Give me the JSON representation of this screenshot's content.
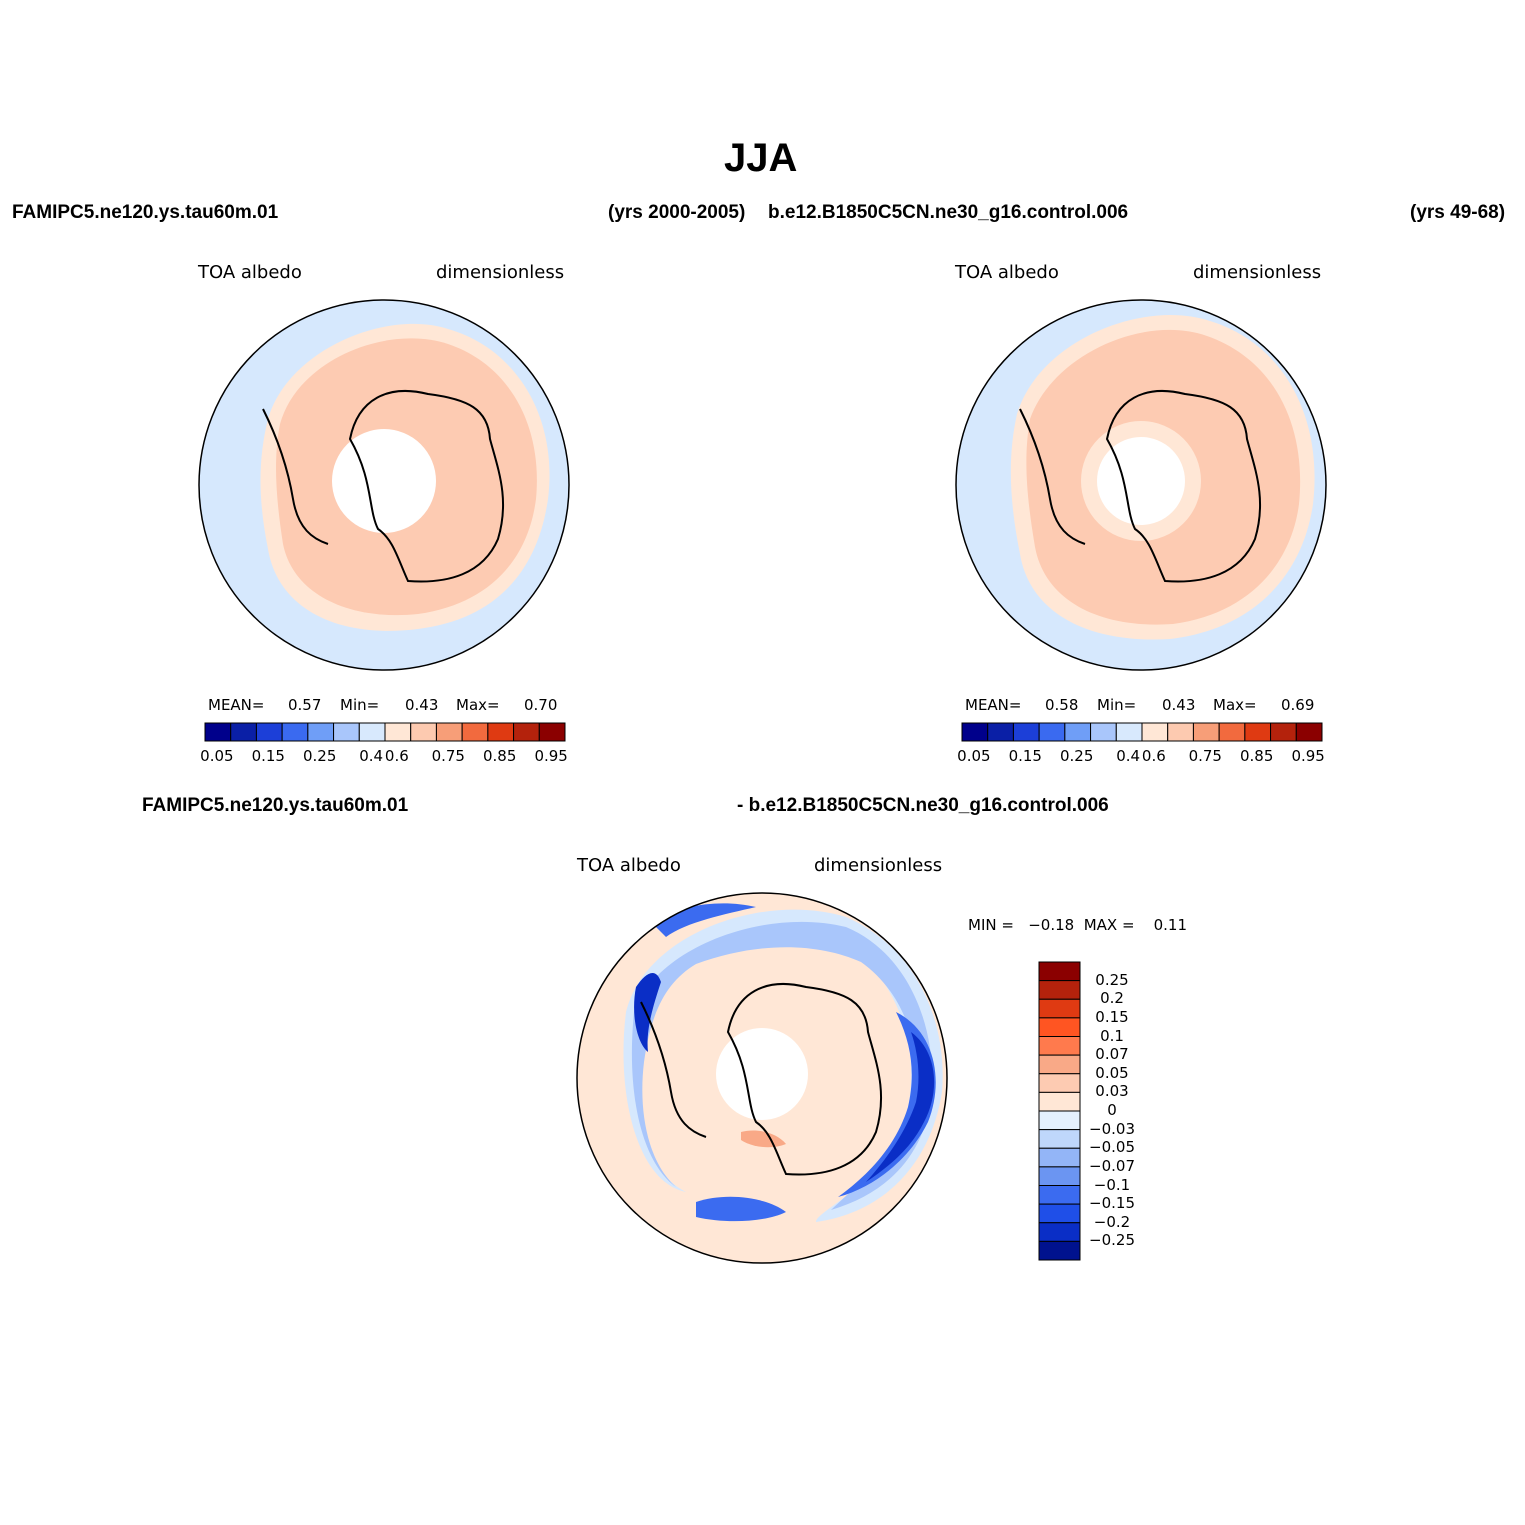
{
  "title": "JJA",
  "top_left": {
    "case": "FAMIPC5.ne120.ys.tau60m.01",
    "years": "(yrs 2000-2005)",
    "variable": "TOA  albedo",
    "units": "dimensionless",
    "mean_label": "MEAN=",
    "mean": "0.57",
    "min_label": "Min=",
    "min": "0.43",
    "max_label": "Max=",
    "max": "0.70"
  },
  "top_right": {
    "case": "b.e12.B1850C5CN.ne30_g16.control.006",
    "years": "(yrs 49-68)",
    "variable": "TOA  albedo",
    "units": "dimensionless",
    "mean_label": "MEAN=",
    "mean": "0.58",
    "min_label": "Min=",
    "min": "0.43",
    "max_label": "Max=",
    "max": "0.69"
  },
  "bottom": {
    "case_a": "FAMIPC5.ne120.ys.tau60m.01",
    "case_b": "- b.e12.B1850C5CN.ne30_g16.control.006",
    "variable": "TOA  albedo",
    "units": "dimensionless",
    "minmax": "MIN =   −0.18  MAX =    0.11"
  },
  "colorbar_h": {
    "colors": [
      "#00008b",
      "#0a1fa6",
      "#1c3fd8",
      "#3a6af0",
      "#6f9ef7",
      "#a9c6fb",
      "#d8e9fd",
      "#ffe7d6",
      "#fdcab0",
      "#f79e78",
      "#f26a3e",
      "#df3a12",
      "#b4220c",
      "#8b0000"
    ],
    "ticks": [
      "0.05",
      "0.15",
      "0.25",
      "0.4",
      "0.6",
      "0.75",
      "0.85",
      "0.95"
    ]
  },
  "colorbar_v": {
    "colors": [
      "#8b0000",
      "#b4220c",
      "#df3a12",
      "#ff5522",
      "#ff7a4d",
      "#f9a987",
      "#fdcbb2",
      "#ffe7d6",
      "#e4f0fd",
      "#bfd7fb",
      "#93b5f7",
      "#6b95f2",
      "#3b6bf0",
      "#1f4fe8",
      "#0a2ec6",
      "#00128e"
    ],
    "labels": [
      "0.25",
      "0.2",
      "0.15",
      "0.1",
      "0.07",
      "0.05",
      "0.03",
      "0",
      "−0.03",
      "−0.05",
      "−0.07",
      "−0.1",
      "−0.15",
      "−0.2",
      "−0.25"
    ]
  },
  "map_colors": {
    "ocean_low": "#d6e8fd",
    "band_mid": "#ffe7d6",
    "band_high": "#fdcbb2",
    "diff_pos": "#ffe7d6",
    "diff_neg1": "#d6e8fd",
    "diff_neg2": "#a9c6fb",
    "diff_neg3": "#3b6bf0",
    "diff_neg4": "#0a2ec6",
    "diff_pos2": "#f9a987"
  }
}
